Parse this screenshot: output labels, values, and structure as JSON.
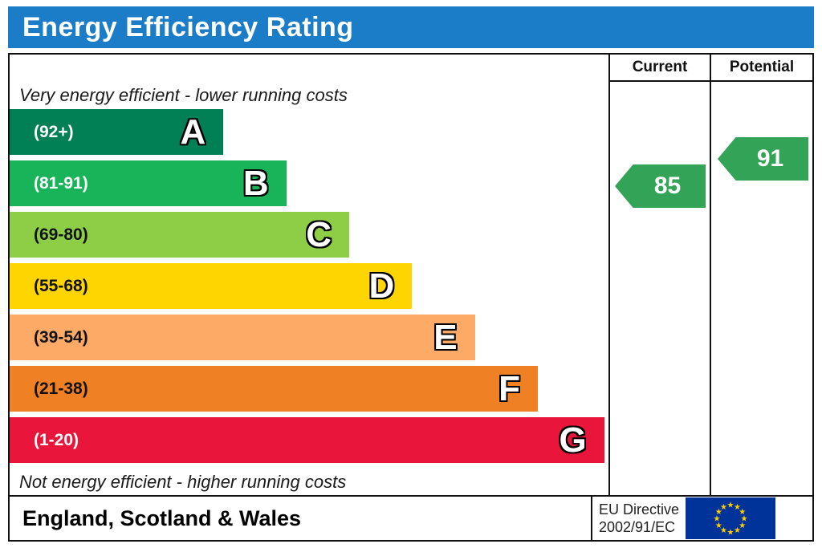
{
  "title": "Energy Efficiency Rating",
  "columns": {
    "current": "Current",
    "potential": "Potential"
  },
  "notes": {
    "top": "Very energy efficient - lower running costs",
    "bottom": "Not energy efficient - higher running costs"
  },
  "footer": {
    "region": "England, Scotland & Wales",
    "directive_line1": "EU Directive",
    "directive_line2": "2002/91/EC",
    "flag": {
      "bg": "#003399",
      "star": "#ffcc00"
    }
  },
  "colors": {
    "header_bg": "#1b7cc8",
    "border": "#111111"
  },
  "chart_data": {
    "type": "bar",
    "title": "Energy Efficiency Rating",
    "categories": [
      "A",
      "B",
      "C",
      "D",
      "E",
      "F",
      "G"
    ],
    "bands": [
      {
        "letter": "A",
        "range_label": "(92+)",
        "min": 92,
        "max": 100,
        "color": "#008054",
        "text_color": "#ffffff",
        "width_pct": 35.7
      },
      {
        "letter": "B",
        "range_label": "(81-91)",
        "min": 81,
        "max": 91,
        "color": "#19b459",
        "text_color": "#ffffff",
        "width_pct": 46.2
      },
      {
        "letter": "C",
        "range_label": "(69-80)",
        "min": 69,
        "max": 80,
        "color": "#8dce46",
        "text_color": "#111111",
        "width_pct": 56.7
      },
      {
        "letter": "D",
        "range_label": "(55-68)",
        "min": 55,
        "max": 68,
        "color": "#ffd500",
        "text_color": "#111111",
        "width_pct": 67.2
      },
      {
        "letter": "E",
        "range_label": "(39-54)",
        "min": 39,
        "max": 54,
        "color": "#fcaa65",
        "text_color": "#111111",
        "width_pct": 77.7
      },
      {
        "letter": "F",
        "range_label": "(21-38)",
        "min": 21,
        "max": 38,
        "color": "#ef8023",
        "text_color": "#111111",
        "width_pct": 88.2
      },
      {
        "letter": "G",
        "range_label": "(1-20)",
        "min": 1,
        "max": 20,
        "color": "#e9153b",
        "text_color": "#ffffff",
        "width_pct": 99.3
      }
    ],
    "current": {
      "value": 85,
      "band": "B",
      "color": "#33a357"
    },
    "potential": {
      "value": 91,
      "band": "B",
      "color": "#33a357"
    },
    "legend_position": "none",
    "grid": false
  }
}
